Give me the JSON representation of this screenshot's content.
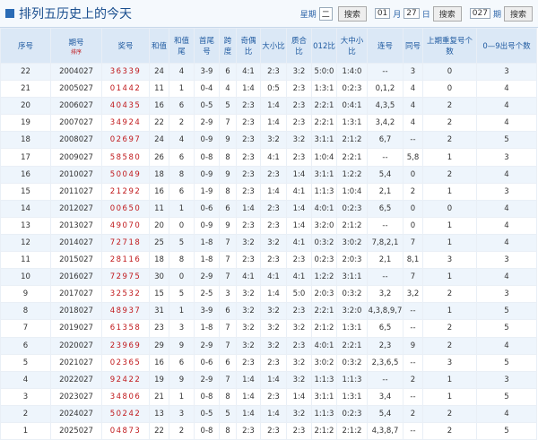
{
  "header": {
    "title": "排列五历史上的今天",
    "weekday_label": "星期",
    "weekday_value": "二",
    "search1": "搜索",
    "month_value": "01",
    "month_label": "月",
    "day_value": "27",
    "day_label": "日",
    "search2": "搜索",
    "issue_value": "027",
    "issue_label": "期",
    "search3": "搜索"
  },
  "table": {
    "columns": [
      "序号",
      "期号",
      "奖号",
      "和值",
      "和值尾",
      "首尾号",
      "跨度",
      "奇偶比",
      "大小比",
      "质合比",
      "012比",
      "大中小比",
      "连号",
      "同号",
      "上期重复号个数",
      "0—9出号个数"
    ],
    "sort_label": "排序",
    "rows": [
      [
        "22",
        "2004027",
        "36339",
        "24",
        "4",
        "3-9",
        "6",
        "4:1",
        "2:3",
        "3:2",
        "5:0:0",
        "1:4:0",
        "--",
        "3",
        "0",
        "3"
      ],
      [
        "21",
        "2005027",
        "01442",
        "11",
        "1",
        "0-4",
        "4",
        "1:4",
        "0:5",
        "2:3",
        "1:3:1",
        "0:2:3",
        "0,1,2",
        "4",
        "0",
        "4"
      ],
      [
        "20",
        "2006027",
        "40435",
        "16",
        "6",
        "0-5",
        "5",
        "2:3",
        "1:4",
        "2:3",
        "2:2:1",
        "0:4:1",
        "4,3,5",
        "4",
        "2",
        "4"
      ],
      [
        "19",
        "2007027",
        "34924",
        "22",
        "2",
        "2-9",
        "7",
        "2:3",
        "1:4",
        "2:3",
        "2:2:1",
        "1:3:1",
        "3,4,2",
        "4",
        "2",
        "4"
      ],
      [
        "18",
        "2008027",
        "02697",
        "24",
        "4",
        "0-9",
        "9",
        "2:3",
        "3:2",
        "3:2",
        "3:1:1",
        "2:1:2",
        "6,7",
        "--",
        "2",
        "5"
      ],
      [
        "17",
        "2009027",
        "58580",
        "26",
        "6",
        "0-8",
        "8",
        "2:3",
        "4:1",
        "2:3",
        "1:0:4",
        "2:2:1",
        "--",
        "5,8",
        "1",
        "3"
      ],
      [
        "16",
        "2010027",
        "50049",
        "18",
        "8",
        "0-9",
        "9",
        "2:3",
        "2:3",
        "1:4",
        "3:1:1",
        "1:2:2",
        "5,4",
        "0",
        "2",
        "4"
      ],
      [
        "15",
        "2011027",
        "21292",
        "16",
        "6",
        "1-9",
        "8",
        "2:3",
        "1:4",
        "4:1",
        "1:1:3",
        "1:0:4",
        "2,1",
        "2",
        "1",
        "3"
      ],
      [
        "14",
        "2012027",
        "00650",
        "11",
        "1",
        "0-6",
        "6",
        "1:4",
        "2:3",
        "1:4",
        "4:0:1",
        "0:2:3",
        "6,5",
        "0",
        "0",
        "4"
      ],
      [
        "13",
        "2013027",
        "49070",
        "20",
        "0",
        "0-9",
        "9",
        "2:3",
        "2:3",
        "1:4",
        "3:2:0",
        "2:1:2",
        "--",
        "0",
        "1",
        "4"
      ],
      [
        "12",
        "2014027",
        "72718",
        "25",
        "5",
        "1-8",
        "7",
        "3:2",
        "3:2",
        "4:1",
        "0:3:2",
        "3:0:2",
        "7,8,2,1",
        "7",
        "1",
        "4"
      ],
      [
        "11",
        "2015027",
        "28116",
        "18",
        "8",
        "1-8",
        "7",
        "2:3",
        "2:3",
        "2:3",
        "0:2:3",
        "2:0:3",
        "2,1",
        "8,1",
        "3",
        "3"
      ],
      [
        "10",
        "2016027",
        "72975",
        "30",
        "0",
        "2-9",
        "7",
        "4:1",
        "4:1",
        "4:1",
        "1:2:2",
        "3:1:1",
        "--",
        "7",
        "1",
        "4"
      ],
      [
        "9",
        "2017027",
        "32532",
        "15",
        "5",
        "2-5",
        "3",
        "3:2",
        "1:4",
        "5:0",
        "2:0:3",
        "0:3:2",
        "3,2",
        "3,2",
        "2",
        "3"
      ],
      [
        "8",
        "2018027",
        "48937",
        "31",
        "1",
        "3-9",
        "6",
        "3:2",
        "3:2",
        "2:3",
        "2:2:1",
        "3:2:0",
        "4,3,8,9,7",
        "--",
        "1",
        "5"
      ],
      [
        "7",
        "2019027",
        "61358",
        "23",
        "3",
        "1-8",
        "7",
        "3:2",
        "3:2",
        "3:2",
        "2:1:2",
        "1:3:1",
        "6,5",
        "--",
        "2",
        "5"
      ],
      [
        "6",
        "2020027",
        "23969",
        "29",
        "9",
        "2-9",
        "7",
        "3:2",
        "3:2",
        "2:3",
        "4:0:1",
        "2:2:1",
        "2,3",
        "9",
        "2",
        "4"
      ],
      [
        "5",
        "2021027",
        "02365",
        "16",
        "6",
        "0-6",
        "6",
        "2:3",
        "2:3",
        "3:2",
        "3:0:2",
        "0:3:2",
        "2,3,6,5",
        "--",
        "3",
        "5"
      ],
      [
        "4",
        "2022027",
        "92422",
        "19",
        "9",
        "2-9",
        "7",
        "1:4",
        "1:4",
        "3:2",
        "1:1:3",
        "1:1:3",
        "--",
        "2",
        "1",
        "3"
      ],
      [
        "3",
        "2023027",
        "34806",
        "21",
        "1",
        "0-8",
        "8",
        "1:4",
        "2:3",
        "1:4",
        "3:1:1",
        "1:3:1",
        "3,4",
        "--",
        "1",
        "5"
      ],
      [
        "2",
        "2024027",
        "50242",
        "13",
        "3",
        "0-5",
        "5",
        "1:4",
        "1:4",
        "3:2",
        "1:1:3",
        "0:2:3",
        "5,4",
        "2",
        "2",
        "4"
      ],
      [
        "1",
        "2025027",
        "04873",
        "22",
        "2",
        "0-8",
        "8",
        "2:3",
        "2:3",
        "2:3",
        "2:1:2",
        "2:1:2",
        "4,3,8,7",
        "--",
        "2",
        "5"
      ]
    ]
  }
}
